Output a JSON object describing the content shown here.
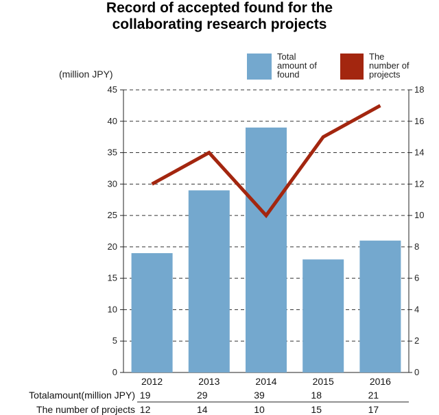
{
  "chart_data": {
    "type": "bar",
    "title": "Record of accepted found for the collaborating research projects",
    "title_lines": [
      "Record of accepted found for the",
      "collaborating research projects"
    ],
    "left_axis_label": "(million JPY)",
    "categories": [
      "2012",
      "2013",
      "2014",
      "2015",
      "2016"
    ],
    "series": [
      {
        "name": "Total amount of found",
        "legend_label": "Total\namount of\nfound",
        "kind": "bar",
        "axis": "left",
        "color": "#74a8ce",
        "values": [
          19,
          29,
          39,
          18,
          21
        ]
      },
      {
        "name": "The number of projects",
        "legend_label": "The\nnumber of\nprojects",
        "kind": "line",
        "axis": "right",
        "color": "#a3260f",
        "values": [
          12,
          14,
          10,
          15,
          17
        ]
      }
    ],
    "y_left": {
      "min": 0,
      "max": 45,
      "ticks": [
        0,
        5,
        10,
        15,
        20,
        25,
        30,
        35,
        40,
        45
      ]
    },
    "y_right": {
      "min": 0,
      "max": 18,
      "ticks": [
        0,
        2,
        4,
        6,
        8,
        10,
        12,
        14,
        16,
        18
      ]
    },
    "grid": true,
    "legend_position": "top-right",
    "table": {
      "rows": [
        {
          "label": "Totalamount(million JPY)",
          "values": [
            "19",
            "29",
            "39",
            "18",
            "21"
          ]
        },
        {
          "label": "The number of projects",
          "values": [
            "12",
            "14",
            "10",
            "15",
            "17"
          ]
        }
      ]
    }
  }
}
